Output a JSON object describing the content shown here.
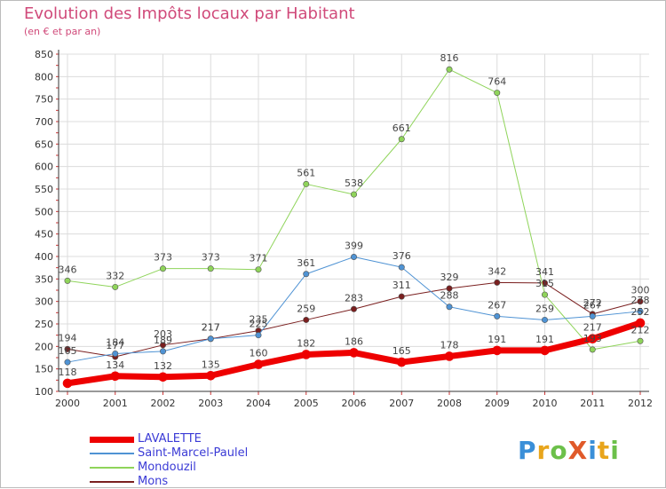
{
  "header": {
    "title": "Evolution des Impôts locaux par Habitant",
    "subtitle": "(en € et par an)"
  },
  "logo": {
    "text": "ProXiti",
    "colors": [
      "#3a8fd8",
      "#e8a51c",
      "#6cc04a",
      "#e05a2a",
      "#3a8fd8",
      "#e8a51c",
      "#6cc04a"
    ]
  },
  "chart_data": {
    "type": "line",
    "title": "Evolution des Impôts locaux par Habitant",
    "subtitle": "(en € et par an)",
    "xlabel": "",
    "ylabel": "",
    "x": [
      "2000",
      "2001",
      "2002",
      "2003",
      "2004",
      "2005",
      "2006",
      "2007",
      "2008",
      "2009",
      "2010",
      "2011",
      "2012"
    ],
    "ylim": [
      100,
      850
    ],
    "yticks": [
      100,
      150,
      200,
      250,
      300,
      350,
      400,
      450,
      500,
      550,
      600,
      650,
      700,
      750,
      800,
      850
    ],
    "grid": true,
    "legend_position": "bottom-left",
    "series": [
      {
        "name": "Mons",
        "color": "#7a1f1f",
        "width": 1,
        "values": [
          194,
          177,
          203,
          217,
          235,
          259,
          283,
          311,
          329,
          342,
          341,
          272,
          300
        ],
        "labels": [
          "194",
          "177",
          "203",
          "217",
          "235",
          "259",
          "283",
          "311",
          "329",
          "342",
          "341",
          "272",
          "300"
        ]
      },
      {
        "name": "Mondouzil",
        "color": "#8fd45a",
        "width": 1,
        "values": [
          346,
          332,
          373,
          373,
          371,
          561,
          538,
          661,
          816,
          764,
          315,
          193,
          212
        ],
        "labels": [
          "346",
          "332",
          "373",
          "373",
          "371",
          "561",
          "538",
          "661",
          "816",
          "764",
          "315",
          "193",
          "212"
        ]
      },
      {
        "name": "Saint-Marcel-Paulel",
        "color": "#4f93d4",
        "width": 1,
        "values": [
          165,
          184,
          189,
          217,
          225,
          361,
          399,
          376,
          288,
          267,
          259,
          267,
          278
        ],
        "labels": [
          "165",
          "184",
          "189",
          "217",
          "225",
          "361",
          "399",
          "376",
          "288",
          "267",
          "259",
          "267",
          "278"
        ]
      },
      {
        "name": "LAVALETTE",
        "color": "#ee0000",
        "width": 7,
        "values": [
          118,
          134,
          132,
          135,
          160,
          182,
          186,
          165,
          178,
          191,
          191,
          217,
          252
        ],
        "labels": [
          "118",
          "134",
          "132",
          "135",
          "160",
          "182",
          "186",
          "165",
          "178",
          "191",
          "191",
          "217",
          "252"
        ]
      }
    ]
  },
  "legend": {
    "items": [
      {
        "name": "LAVALETTE",
        "color": "#ee0000",
        "thickness": 7
      },
      {
        "name": "Saint-Marcel-Paulel",
        "color": "#4f93d4",
        "thickness": 2
      },
      {
        "name": "Mondouzil",
        "color": "#8fd45a",
        "thickness": 2
      },
      {
        "name": "Mons",
        "color": "#7a1f1f",
        "thickness": 2
      }
    ]
  }
}
